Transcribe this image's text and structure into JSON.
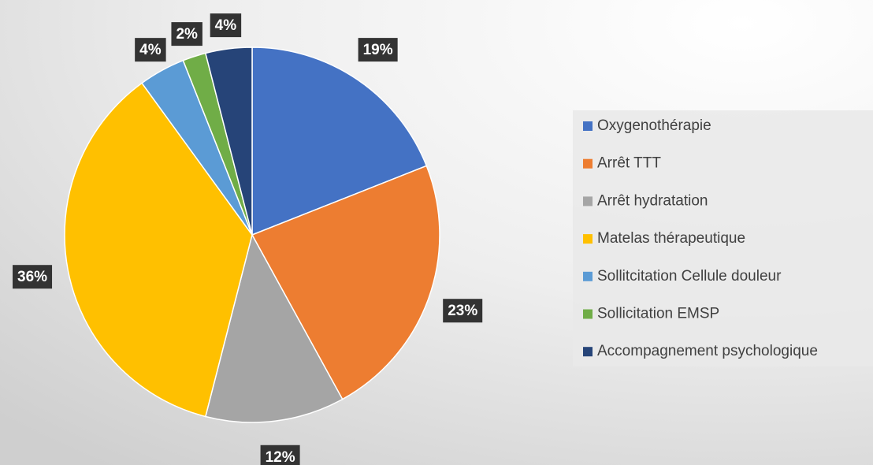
{
  "chart_data": {
    "type": "pie",
    "categories": [
      "Oxygenothérapie",
      "Arrêt TTT",
      "Arrêt hydratation",
      "Matelas thérapeutique",
      "Sollitcitation Cellule douleur",
      "Sollicitation EMSP",
      "Accompagnement psychologique"
    ],
    "values": [
      19,
      23,
      12,
      36,
      4,
      2,
      4
    ],
    "value_labels": [
      "19%",
      "23%",
      "12%",
      "36%",
      "4%",
      "2%",
      "4%"
    ],
    "colors": [
      "#4472c4",
      "#ed7d31",
      "#a5a5a5",
      "#ffc000",
      "#5b9bd5",
      "#70ad47",
      "#264478"
    ],
    "legend": "right"
  }
}
